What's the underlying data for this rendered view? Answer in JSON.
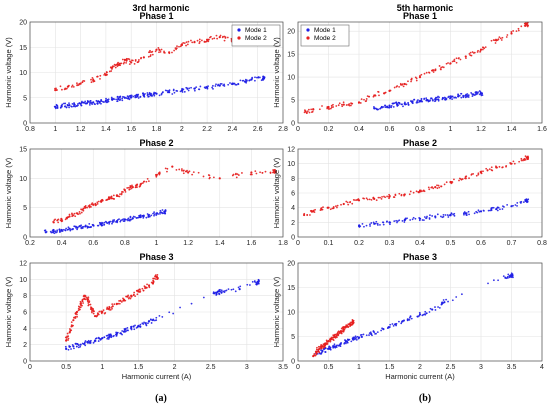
{
  "column_titles": [
    "3rd harmonic",
    "5th harmonic"
  ],
  "figure_labels": [
    "(a)",
    "(b)"
  ],
  "colors": {
    "mode1": "#1f1fe6",
    "mode2": "#e61f1f"
  },
  "chart_data": [
    {
      "id": "h3p1",
      "type": "scatter",
      "col": 0,
      "row": 0,
      "title": "Phase 1",
      "xlabel": "",
      "ylabel": "Harmonic voltage (V)",
      "xlim": [
        0.8,
        2.8
      ],
      "ylim": [
        0,
        20
      ],
      "xticks": [
        0.8,
        1,
        1.2,
        1.4,
        1.6,
        1.8,
        2,
        2.2,
        2.4,
        2.6,
        2.8
      ],
      "yticks": [
        0,
        5,
        10,
        15,
        20
      ],
      "grid": true,
      "legend": "top-right",
      "series": [
        {
          "name": "Mode 1",
          "color": "#1f1fe6",
          "points": [
            [
              1.0,
              3.2
            ],
            [
              1.05,
              3.4
            ],
            [
              1.1,
              3.5
            ],
            [
              1.15,
              3.6
            ],
            [
              1.2,
              3.8
            ],
            [
              1.25,
              3.9
            ],
            [
              1.3,
              4.1
            ],
            [
              1.35,
              4.2
            ],
            [
              1.4,
              4.4
            ],
            [
              1.45,
              4.6
            ],
            [
              1.5,
              4.8
            ],
            [
              1.55,
              5.0
            ],
            [
              1.6,
              5.1
            ],
            [
              1.65,
              5.3
            ],
            [
              1.7,
              5.5
            ],
            [
              1.75,
              5.7
            ],
            [
              1.8,
              5.8
            ],
            [
              1.9,
              6.1
            ],
            [
              2.0,
              6.4
            ],
            [
              2.1,
              6.8
            ],
            [
              2.2,
              7.0
            ],
            [
              2.3,
              7.4
            ],
            [
              2.4,
              7.8
            ],
            [
              2.5,
              8.2
            ],
            [
              2.55,
              8.6
            ],
            [
              2.65,
              8.8
            ]
          ]
        },
        {
          "name": "Mode 2",
          "color": "#e61f1f",
          "points": [
            [
              1.0,
              6.5
            ],
            [
              1.1,
              7.2
            ],
            [
              1.2,
              7.8
            ],
            [
              1.3,
              8.5
            ],
            [
              1.4,
              9.5
            ],
            [
              1.45,
              11.0
            ],
            [
              1.5,
              11.5
            ],
            [
              1.55,
              12.5
            ],
            [
              1.6,
              12.0
            ],
            [
              1.7,
              13.0
            ],
            [
              1.8,
              14.5
            ],
            [
              1.9,
              14.0
            ],
            [
              2.0,
              15.5
            ],
            [
              2.1,
              16.0
            ],
            [
              2.2,
              16.5
            ],
            [
              2.3,
              17.0
            ],
            [
              2.4,
              16.5
            ]
          ]
        }
      ]
    },
    {
      "id": "h5p1",
      "type": "scatter",
      "col": 1,
      "row": 0,
      "title": "Phase 1",
      "xlabel": "",
      "ylabel": "Harmonic voltage (V)",
      "xlim": [
        0,
        1.6
      ],
      "ylim": [
        0,
        22
      ],
      "xticks": [
        0,
        0.2,
        0.4,
        0.6,
        0.8,
        1,
        1.2,
        1.4,
        1.6
      ],
      "yticks": [
        0,
        5,
        10,
        15,
        20
      ],
      "grid": true,
      "legend": "top-left",
      "series": [
        {
          "name": "Mode 1",
          "color": "#1f1fe6",
          "points": [
            [
              0.5,
              3.2
            ],
            [
              0.55,
              3.5
            ],
            [
              0.6,
              3.8
            ],
            [
              0.65,
              4.0
            ],
            [
              0.7,
              4.2
            ],
            [
              0.75,
              4.5
            ],
            [
              0.8,
              4.8
            ],
            [
              0.85,
              5.0
            ],
            [
              0.9,
              5.2
            ],
            [
              0.95,
              5.4
            ],
            [
              1.0,
              5.6
            ],
            [
              1.05,
              5.8
            ],
            [
              1.1,
              6.0
            ],
            [
              1.15,
              6.2
            ],
            [
              1.2,
              6.5
            ]
          ]
        },
        {
          "name": "Mode 2",
          "color": "#e61f1f",
          "points": [
            [
              0.05,
              2.5
            ],
            [
              0.1,
              3.0
            ],
            [
              0.2,
              3.5
            ],
            [
              0.3,
              4.0
            ],
            [
              0.4,
              4.5
            ],
            [
              0.5,
              6.0
            ],
            [
              0.6,
              7.0
            ],
            [
              0.7,
              8.5
            ],
            [
              0.8,
              10.0
            ],
            [
              0.9,
              11.5
            ],
            [
              1.0,
              13.0
            ],
            [
              1.1,
              14.5
            ],
            [
              1.2,
              16.0
            ],
            [
              1.3,
              18.0
            ],
            [
              1.4,
              19.5
            ],
            [
              1.5,
              21.5
            ]
          ]
        }
      ]
    },
    {
      "id": "h3p2",
      "type": "scatter",
      "col": 0,
      "row": 1,
      "title": "Phase 2",
      "xlabel": "",
      "ylabel": "Harmonic voltage (V)",
      "xlim": [
        0.2,
        1.8
      ],
      "ylim": [
        0,
        15
      ],
      "xticks": [
        0.2,
        0.4,
        0.6,
        0.8,
        1,
        1.2,
        1.4,
        1.6,
        1.8
      ],
      "yticks": [
        0,
        5,
        10,
        15
      ],
      "grid": true,
      "legend": "none",
      "series": [
        {
          "name": "Mode 1",
          "color": "#1f1fe6",
          "points": [
            [
              0.3,
              0.8
            ],
            [
              0.35,
              1.0
            ],
            [
              0.4,
              1.2
            ],
            [
              0.45,
              1.4
            ],
            [
              0.5,
              1.6
            ],
            [
              0.55,
              1.8
            ],
            [
              0.6,
              2.0
            ],
            [
              0.65,
              2.2
            ],
            [
              0.7,
              2.5
            ],
            [
              0.75,
              2.7
            ],
            [
              0.8,
              3.0
            ],
            [
              0.85,
              3.2
            ],
            [
              0.9,
              3.4
            ],
            [
              0.95,
              3.7
            ],
            [
              1.0,
              4.0
            ],
            [
              1.05,
              4.3
            ]
          ]
        },
        {
          "name": "Mode 2",
          "color": "#e61f1f",
          "points": [
            [
              0.35,
              2.5
            ],
            [
              0.4,
              3.0
            ],
            [
              0.45,
              3.5
            ],
            [
              0.5,
              4.0
            ],
            [
              0.55,
              5.0
            ],
            [
              0.6,
              5.5
            ],
            [
              0.65,
              6.0
            ],
            [
              0.7,
              6.5
            ],
            [
              0.75,
              7.0
            ],
            [
              0.8,
              8.0
            ],
            [
              0.85,
              8.5
            ],
            [
              0.9,
              9.0
            ],
            [
              1.0,
              10.5
            ],
            [
              1.1,
              12.0
            ],
            [
              1.2,
              11.0
            ],
            [
              1.4,
              10.0
            ],
            [
              1.6,
              11.0
            ],
            [
              1.75,
              11.2
            ]
          ]
        }
      ]
    },
    {
      "id": "h5p2",
      "type": "scatter",
      "col": 1,
      "row": 1,
      "title": "Phase 2",
      "xlabel": "",
      "ylabel": "Harmonic voltage (V)",
      "xlim": [
        0,
        0.8
      ],
      "ylim": [
        0,
        12
      ],
      "xticks": [
        0,
        0.1,
        0.2,
        0.3,
        0.4,
        0.5,
        0.6,
        0.7,
        0.8
      ],
      "yticks": [
        0,
        2,
        4,
        6,
        8,
        10,
        12
      ],
      "grid": true,
      "legend": "none",
      "series": [
        {
          "name": "Mode 1",
          "color": "#1f1fe6",
          "points": [
            [
              0.2,
              1.5
            ],
            [
              0.25,
              1.8
            ],
            [
              0.3,
              2.0
            ],
            [
              0.35,
              2.3
            ],
            [
              0.4,
              2.5
            ],
            [
              0.45,
              2.8
            ],
            [
              0.5,
              3.0
            ],
            [
              0.55,
              3.2
            ],
            [
              0.6,
              3.5
            ],
            [
              0.65,
              3.8
            ],
            [
              0.7,
              4.2
            ],
            [
              0.75,
              5.0
            ]
          ]
        },
        {
          "name": "Mode 2",
          "color": "#e61f1f",
          "points": [
            [
              0.02,
              3.0
            ],
            [
              0.05,
              3.5
            ],
            [
              0.1,
              4.0
            ],
            [
              0.15,
              4.5
            ],
            [
              0.2,
              5.0
            ],
            [
              0.25,
              5.2
            ],
            [
              0.3,
              5.5
            ],
            [
              0.35,
              5.8
            ],
            [
              0.4,
              6.2
            ],
            [
              0.45,
              6.8
            ],
            [
              0.5,
              7.5
            ],
            [
              0.55,
              8.0
            ],
            [
              0.6,
              8.8
            ],
            [
              0.65,
              9.5
            ],
            [
              0.7,
              10.0
            ],
            [
              0.75,
              10.8
            ]
          ]
        }
      ]
    },
    {
      "id": "h3p3",
      "type": "scatter",
      "col": 0,
      "row": 2,
      "title": "Phase 3",
      "xlabel": "Harmonic current (A)",
      "ylabel": "Harmonic voltage (V)",
      "xlim": [
        0,
        3.5
      ],
      "ylim": [
        0,
        12
      ],
      "xticks": [
        0,
        0.5,
        1,
        1.5,
        2,
        2.5,
        3,
        3.5
      ],
      "yticks": [
        0,
        2,
        4,
        6,
        8,
        10,
        12
      ],
      "grid": true,
      "legend": "none",
      "series": [
        {
          "name": "Mode 1",
          "color": "#1f1fe6",
          "points": [
            [
              0.5,
              1.5
            ],
            [
              0.6,
              1.8
            ],
            [
              0.7,
              2.0
            ],
            [
              0.8,
              2.3
            ],
            [
              0.9,
              2.5
            ],
            [
              1.0,
              2.8
            ],
            [
              1.1,
              3.0
            ],
            [
              1.2,
              3.3
            ],
            [
              1.3,
              3.6
            ],
            [
              1.4,
              4.0
            ],
            [
              1.5,
              4.3
            ],
            [
              1.6,
              4.6
            ],
            [
              1.7,
              5.0
            ],
            [
              2.55,
              8.3
            ],
            [
              2.6,
              8.5
            ],
            [
              2.65,
              8.4
            ],
            [
              2.9,
              8.8
            ],
            [
              3.15,
              9.7
            ]
          ]
        },
        {
          "name": "Mode 2",
          "color": "#e61f1f",
          "points": [
            [
              0.5,
              2.5
            ],
            [
              0.55,
              3.5
            ],
            [
              0.6,
              5.0
            ],
            [
              0.65,
              6.0
            ],
            [
              0.7,
              7.0
            ],
            [
              0.75,
              8.0
            ],
            [
              0.8,
              7.5
            ],
            [
              0.85,
              6.5
            ],
            [
              0.9,
              5.5
            ],
            [
              1.0,
              6.0
            ],
            [
              1.1,
              6.5
            ],
            [
              1.2,
              7.0
            ],
            [
              1.3,
              7.5
            ],
            [
              1.4,
              8.0
            ],
            [
              1.5,
              8.5
            ],
            [
              1.6,
              9.0
            ],
            [
              1.7,
              9.5
            ],
            [
              1.75,
              10.3
            ]
          ]
        }
      ]
    },
    {
      "id": "h5p3",
      "type": "scatter",
      "col": 1,
      "row": 2,
      "title": "Phase 3",
      "xlabel": "Harmonic current (A)",
      "ylabel": "Harmonic voltage (V)",
      "xlim": [
        0,
        4
      ],
      "ylim": [
        0,
        20
      ],
      "xticks": [
        0,
        0.5,
        1,
        1.5,
        2,
        2.5,
        3,
        3.5,
        4
      ],
      "yticks": [
        0,
        5,
        10,
        15,
        20
      ],
      "grid": true,
      "legend": "none",
      "series": [
        {
          "name": "Mode 1",
          "color": "#1f1fe6",
          "points": [
            [
              0.3,
              1.5
            ],
            [
              0.4,
              2.0
            ],
            [
              0.5,
              2.5
            ],
            [
              0.6,
              3.0
            ],
            [
              0.7,
              3.5
            ],
            [
              0.8,
              4.0
            ],
            [
              0.9,
              4.5
            ],
            [
              1.0,
              4.8
            ],
            [
              1.2,
              5.5
            ],
            [
              1.4,
              6.5
            ],
            [
              1.6,
              7.5
            ],
            [
              1.8,
              8.5
            ],
            [
              2.0,
              9.5
            ],
            [
              2.2,
              10.5
            ],
            [
              2.4,
              12.0
            ],
            [
              3.4,
              17.0
            ],
            [
              3.5,
              17.5
            ]
          ]
        },
        {
          "name": "Mode 2",
          "color": "#e61f1f",
          "points": [
            [
              0.25,
              1.0
            ],
            [
              0.3,
              1.8
            ],
            [
              0.35,
              2.5
            ],
            [
              0.4,
              3.0
            ],
            [
              0.45,
              3.5
            ],
            [
              0.5,
              4.0
            ],
            [
              0.55,
              4.5
            ],
            [
              0.6,
              5.0
            ],
            [
              0.65,
              5.5
            ],
            [
              0.7,
              6.0
            ],
            [
              0.75,
              6.5
            ],
            [
              0.8,
              7.0
            ],
            [
              0.85,
              7.5
            ],
            [
              0.9,
              8.0
            ]
          ]
        }
      ]
    }
  ]
}
